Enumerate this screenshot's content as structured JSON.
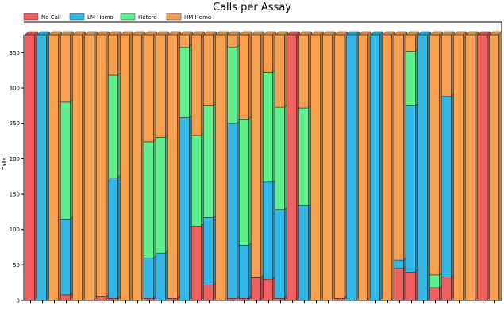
{
  "chart_data": {
    "type": "bar",
    "stacked": true,
    "title": "Calls per Assay",
    "xlabel": "",
    "ylabel": "Calls",
    "ylim": [
      0,
      375
    ],
    "yticks": [
      0,
      50,
      100,
      150,
      200,
      250,
      300,
      350
    ],
    "legend_position": "top-left",
    "grid": false,
    "series": [
      {
        "name": "No Call",
        "color": "#f06060",
        "values": [
          375,
          0,
          0,
          8,
          0,
          0,
          5,
          3,
          0,
          0,
          3,
          0,
          3,
          0,
          105,
          22,
          0,
          3,
          3,
          32,
          30,
          3,
          375,
          0,
          0,
          0,
          3,
          0,
          0,
          0,
          0,
          45,
          40,
          0,
          18,
          33,
          0,
          0,
          375,
          0
        ]
      },
      {
        "name": "LM Homo",
        "color": "#30b8e8",
        "values": [
          0,
          375,
          0,
          107,
          0,
          0,
          0,
          170,
          0,
          0,
          57,
          67,
          0,
          258,
          0,
          95,
          0,
          247,
          75,
          0,
          137,
          125,
          0,
          134,
          0,
          0,
          0,
          375,
          0,
          375,
          0,
          12,
          235,
          375,
          0,
          255,
          0,
          0,
          0,
          0
        ]
      },
      {
        "name": "Hetero",
        "color": "#60f090",
        "values": [
          0,
          0,
          0,
          165,
          0,
          0,
          0,
          145,
          0,
          0,
          164,
          163,
          0,
          100,
          128,
          158,
          0,
          108,
          178,
          0,
          155,
          145,
          0,
          138,
          0,
          0,
          0,
          0,
          0,
          0,
          0,
          0,
          77,
          0,
          18,
          0,
          0,
          0,
          0,
          0
        ]
      },
      {
        "name": "HM Homo",
        "color": "#f8a050",
        "values": [
          0,
          0,
          375,
          95,
          375,
          375,
          370,
          57,
          375,
          375,
          151,
          145,
          372,
          17,
          142,
          100,
          375,
          17,
          119,
          343,
          53,
          102,
          0,
          103,
          375,
          375,
          372,
          0,
          375,
          0,
          375,
          318,
          23,
          0,
          339,
          87,
          375,
          375,
          0,
          375
        ]
      }
    ]
  }
}
